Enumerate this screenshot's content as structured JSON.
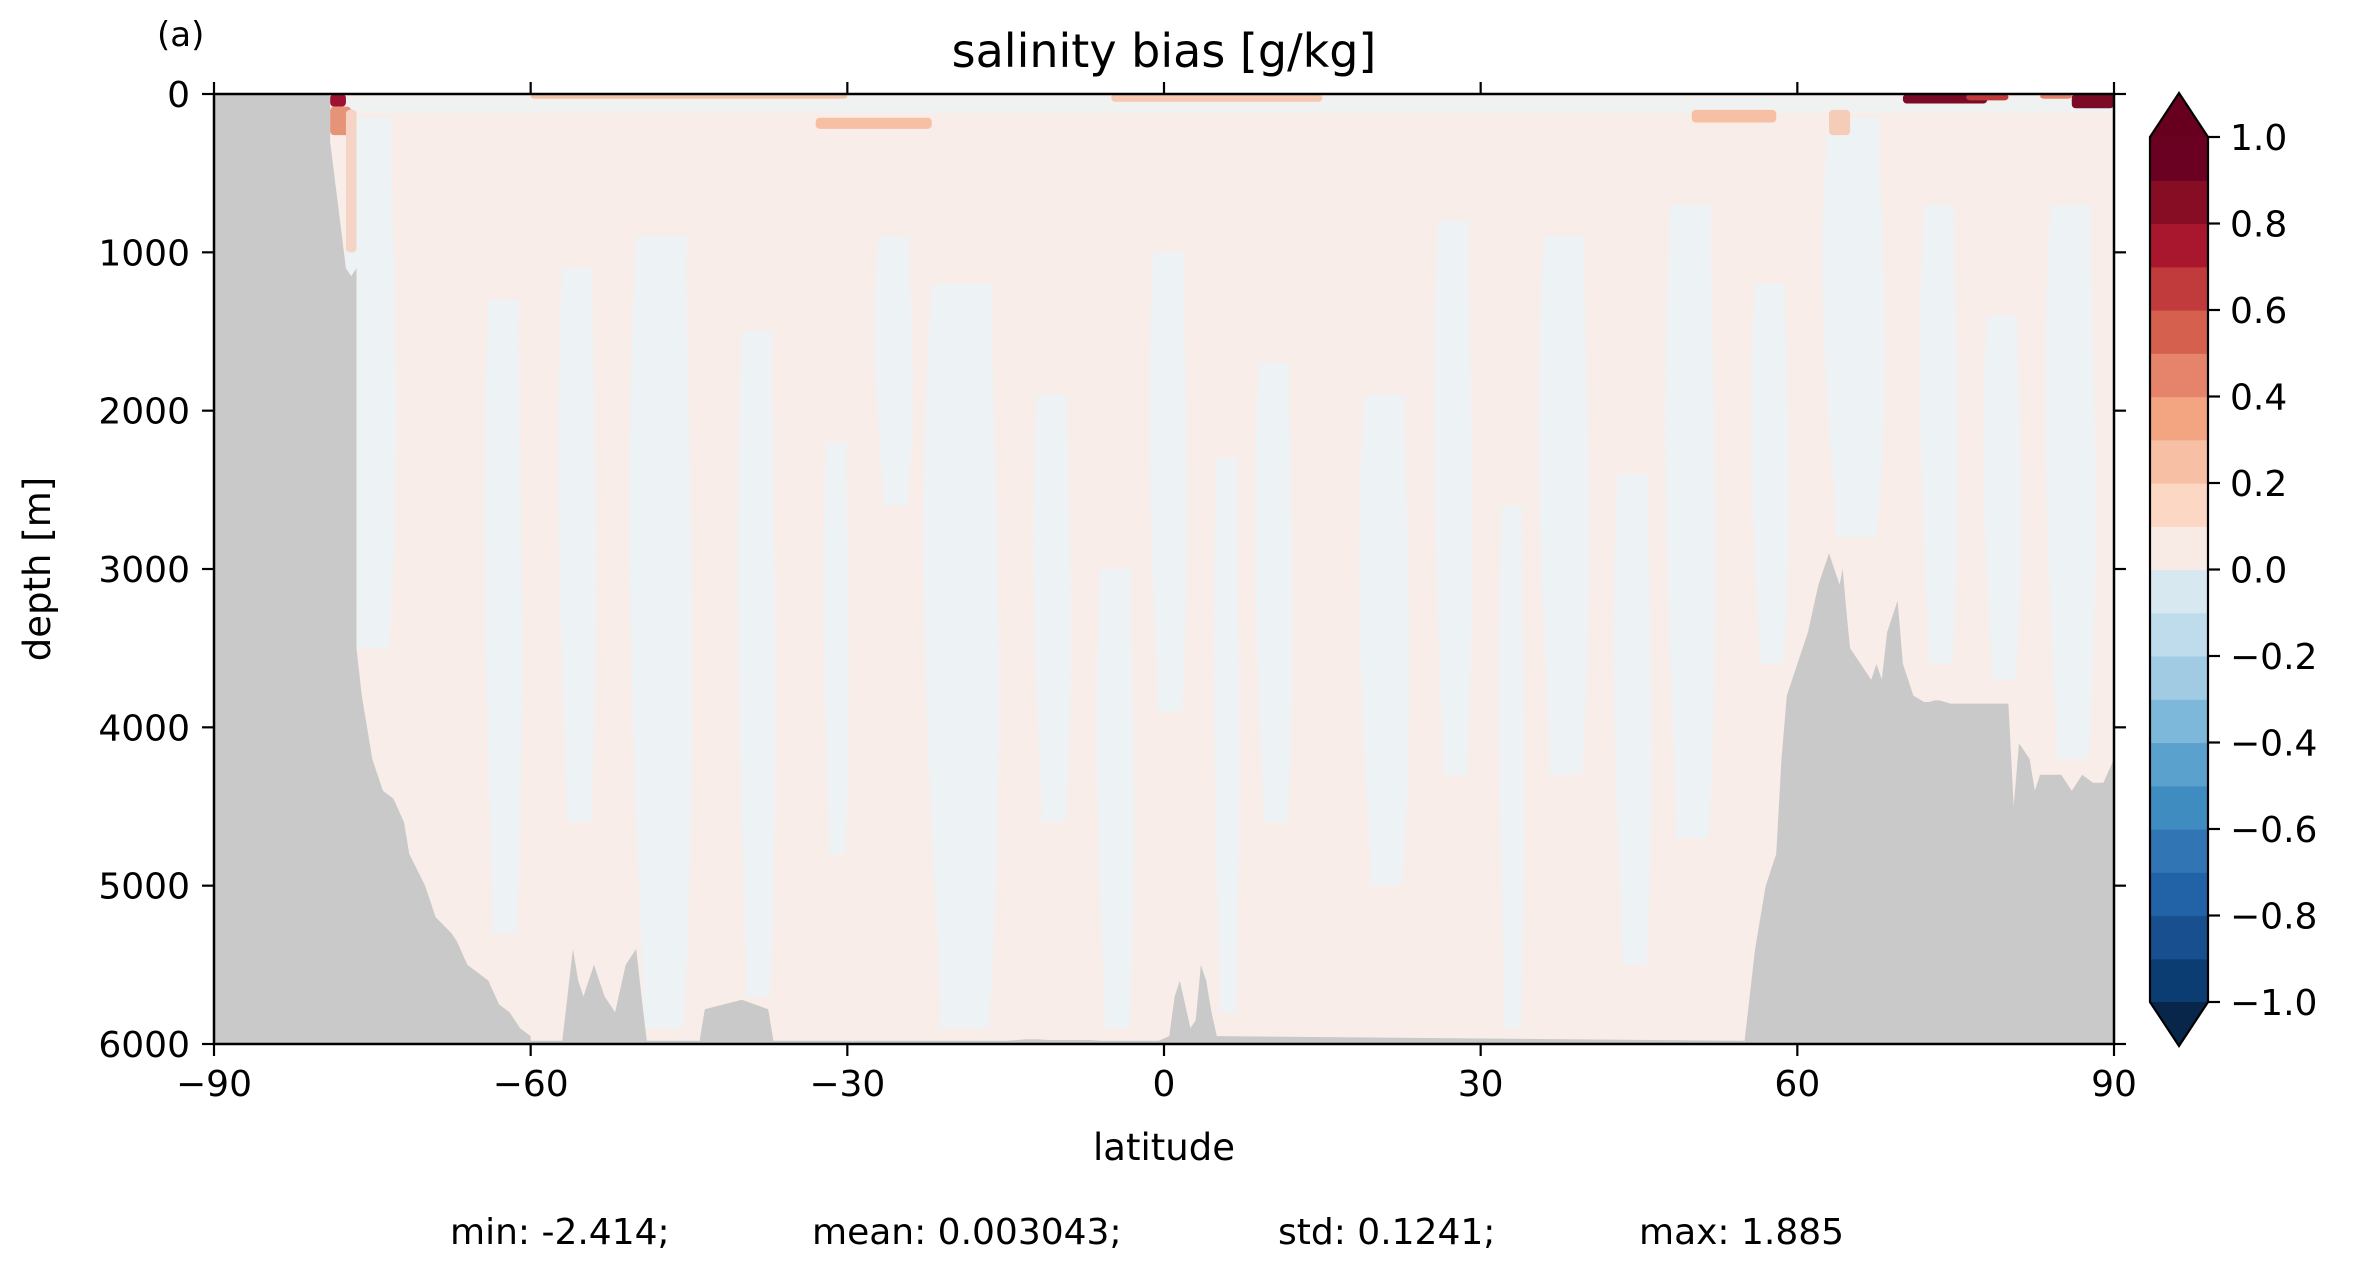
{
  "panel_label": "(a)",
  "chart_data": {
    "type": "heatmap",
    "title": "salinity bias [g/kg]",
    "xlabel": "latitude",
    "ylabel": "depth [m]",
    "xlim": [
      -90,
      90
    ],
    "ylim": [
      6000,
      0
    ],
    "x_ticks": [
      -90,
      -60,
      -30,
      0,
      30,
      60,
      90
    ],
    "x_tick_labels": [
      "−90",
      "−60",
      "−30",
      "0",
      "30",
      "60",
      "90"
    ],
    "y_ticks": [
      0,
      1000,
      2000,
      3000,
      4000,
      5000,
      6000
    ],
    "y_tick_labels": [
      "0",
      "1000",
      "2000",
      "3000",
      "4000",
      "5000",
      "6000"
    ],
    "grid": false,
    "colorbar": {
      "range": [
        -1.0,
        1.0
      ],
      "step": 0.1,
      "extend": "both",
      "ticks": [
        1.0,
        0.8,
        0.6,
        0.4,
        0.2,
        0.0,
        -0.2,
        -0.4,
        -0.6,
        -0.8,
        -1.0
      ],
      "tick_labels": [
        "1.0",
        "0.8",
        "0.6",
        "0.4",
        "0.2",
        "0.0",
        "−0.2",
        "−0.4",
        "−0.6",
        "−0.8",
        "−1.0"
      ],
      "colors": [
        "#0b3d72",
        "#174f8f",
        "#2263a8",
        "#3175b5",
        "#3f8cc0",
        "#5aa1cd",
        "#7db8da",
        "#a1cae3",
        "#bedcec",
        "#d7e8f1",
        "#edf2f5",
        "#f8ebe5",
        "#fbd7c4",
        "#f7bfa3",
        "#f3a481",
        "#e6836b",
        "#d5604d",
        "#c13b3c",
        "#a8172d",
        "#870d24",
        "#6a0022"
      ],
      "under_color": "#08264a",
      "over_color": "#67001f"
    },
    "field_description_colors": {
      "land_mask": "#c9c9c9",
      "slight_positive": "#f8ede8",
      "slight_negative": "#edf2f5"
    },
    "southern_bathymetry": {
      "lat": [
        -90,
        -79,
        -79,
        -77.5,
        -77,
        -76.5,
        -76.5,
        -76,
        -75,
        -74,
        -73,
        -72,
        -71.5,
        -70,
        -69,
        -67.5,
        -67,
        -66,
        -65,
        -64,
        -63,
        -62,
        -61,
        -60,
        -60,
        -57,
        -56,
        -55.5,
        -55,
        -54,
        -53,
        -52,
        -51,
        -50,
        -49.5,
        -49,
        -44,
        -43.5,
        -40,
        -37.5,
        -37,
        -34,
        -15,
        -13,
        -12,
        -11,
        -10,
        -9,
        -8.5,
        -8,
        -7.5,
        -7,
        -6,
        -5,
        -4,
        -2,
        -0.5,
        0.5,
        1,
        1.5,
        2,
        2.5,
        3,
        3.5,
        4,
        4.5,
        5,
        55
      ],
      "depth": [
        0,
        0,
        300,
        1100,
        1150,
        1100,
        3500,
        3800,
        4200,
        4400,
        4450,
        4600,
        4800,
        5000,
        5200,
        5300,
        5350,
        5500,
        5550,
        5600,
        5750,
        5800,
        5900,
        5950,
        5980,
        5980,
        5400,
        5600,
        5700,
        5500,
        5700,
        5800,
        5500,
        5400,
        5700,
        5980,
        5980,
        5780,
        5720,
        5780,
        5980,
        5980,
        5980,
        5970,
        5970,
        5975,
        5975,
        5975,
        5975,
        5975,
        5975,
        5975,
        5980,
        5980,
        5980,
        5980,
        5980,
        5950,
        5700,
        5600,
        5750,
        5900,
        5850,
        5500,
        5600,
        5800,
        5950,
        5980
      ]
    },
    "northern_bathymetry": {
      "lat": [
        55,
        56,
        57,
        58,
        58.5,
        59,
        60,
        61,
        62,
        62.5,
        63,
        63.5,
        64,
        64.3,
        64.7,
        65,
        66,
        67,
        67.5,
        68,
        68.5,
        69,
        69.5,
        70,
        70.5,
        71,
        71.5,
        72,
        72.5,
        73,
        73.5,
        74,
        74.5,
        75,
        75.5,
        76,
        77,
        78,
        79,
        79.5,
        80,
        80.5,
        81,
        82,
        82.5,
        83,
        84,
        85,
        86,
        87,
        88,
        89,
        90
      ],
      "depth": [
        5980,
        5400,
        5000,
        4800,
        4200,
        3800,
        3600,
        3400,
        3100,
        3000,
        2900,
        3000,
        3100,
        3000,
        3300,
        3500,
        3600,
        3700,
        3600,
        3700,
        3400,
        3300,
        3200,
        3600,
        3700,
        3800,
        3820,
        3840,
        3840,
        3830,
        3830,
        3840,
        3850,
        3850,
        3850,
        3850,
        3850,
        3850,
        3850,
        3850,
        3850,
        4500,
        4100,
        4200,
        4400,
        4300,
        4300,
        4300,
        4400,
        4300,
        4350,
        4350,
        4200
      ]
    },
    "stats": {
      "min": "min: -2.414;",
      "mean": "mean: 0.003043;",
      "std": "std: 0.1241;",
      "max": "max: 1.885"
    }
  }
}
